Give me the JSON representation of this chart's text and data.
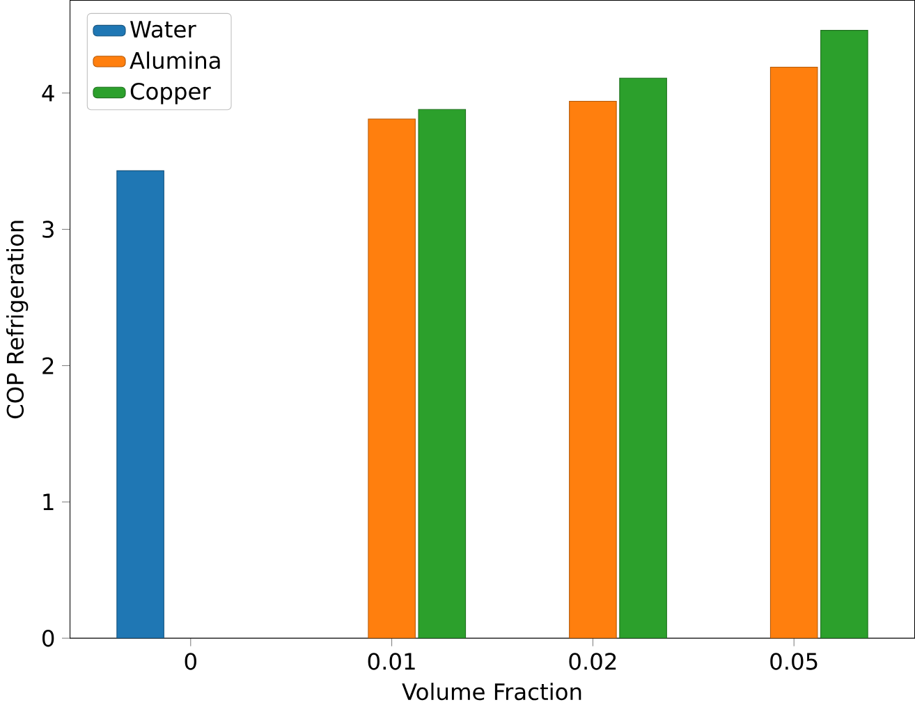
{
  "chart_data": {
    "type": "bar",
    "xlabel": "Volume Fraction",
    "ylabel": "COP Refrigeration",
    "categories": [
      "0",
      "0.01",
      "0.02",
      "0.05"
    ],
    "series": [
      {
        "name": "Water",
        "color": "#1f77b4",
        "values": [
          3.43,
          null,
          null,
          null
        ]
      },
      {
        "name": "Alumina",
        "color": "#ff7f0e",
        "values": [
          null,
          3.81,
          3.94,
          4.19
        ]
      },
      {
        "name": "Copper",
        "color": "#2ca02c",
        "values": [
          null,
          3.88,
          4.11,
          4.46
        ]
      }
    ],
    "ylim": [
      0,
      4.68
    ],
    "yticks": [
      0,
      1,
      2,
      3,
      4
    ],
    "legend": "top left",
    "grid": false
  }
}
